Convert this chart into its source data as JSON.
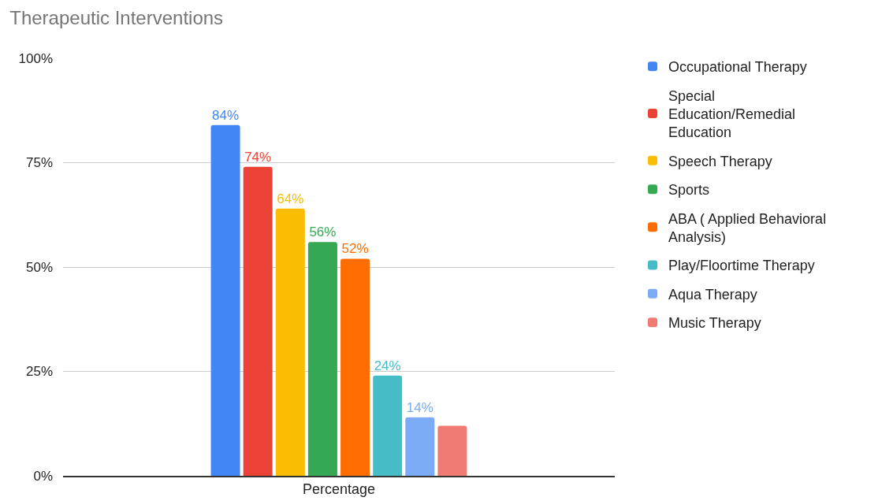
{
  "chart_data": {
    "type": "bar",
    "title": "Therapeutic Interventions",
    "categories": [
      "Percentage"
    ],
    "series": [
      {
        "name": "Occupational Therapy",
        "color": "#4285f4",
        "values": [
          84
        ],
        "value_labels": [
          "84%"
        ]
      },
      {
        "name": "Special Education/Remedial Education",
        "color": "#ea4335",
        "values": [
          74
        ],
        "value_labels": [
          "74%"
        ]
      },
      {
        "name": "Speech Therapy",
        "color": "#fbbc04",
        "values": [
          64
        ],
        "value_labels": [
          "64%"
        ]
      },
      {
        "name": "Sports",
        "color": "#34a853",
        "values": [
          56
        ],
        "value_labels": [
          "56%"
        ]
      },
      {
        "name": "ABA ( Applied Behavioral Analysis)",
        "color": "#ff6d01",
        "values": [
          52
        ],
        "value_labels": [
          "52%"
        ]
      },
      {
        "name": "Play/Floortime Therapy",
        "color": "#46bdc6",
        "values": [
          24
        ],
        "value_labels": [
          "24%"
        ]
      },
      {
        "name": "Aqua Therapy",
        "color": "#7baaf7",
        "values": [
          14
        ],
        "value_labels": [
          "14%"
        ]
      },
      {
        "name": "Music Therapy",
        "color": "#f07b72",
        "values": [
          12
        ],
        "value_labels": [
          null
        ]
      }
    ],
    "ylim": [
      0,
      100
    ],
    "yticks": [
      {
        "value": 0,
        "label": "0%"
      },
      {
        "value": 25,
        "label": "25%"
      },
      {
        "value": 50,
        "label": "50%"
      },
      {
        "value": 75,
        "label": "75%"
      },
      {
        "value": 100,
        "label": "100%"
      }
    ],
    "grid": "y",
    "legend": "right"
  }
}
